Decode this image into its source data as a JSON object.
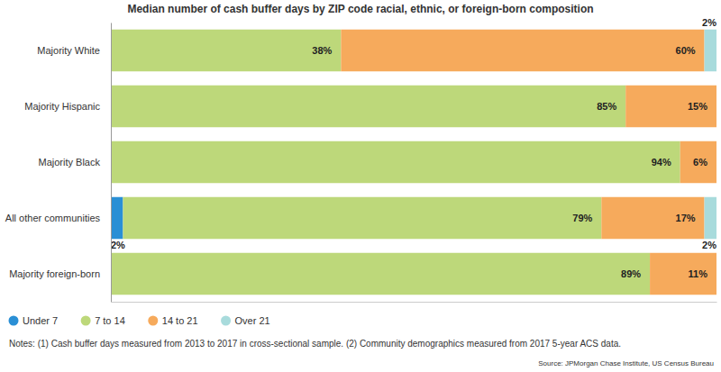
{
  "chart_data": {
    "type": "bar",
    "title": "Median number of cash buffer days by ZIP code racial, ethnic, or foreign-born composition",
    "orientation": "horizontal",
    "stacked": true,
    "data_labels": true,
    "tick_labels": "y",
    "legend": "bottom-left",
    "categories": [
      "Majority White",
      "Majority Hispanic",
      "Majority Black",
      "All other communities",
      "Majority foreign-born"
    ],
    "xlim": [
      0,
      100
    ],
    "series": [
      {
        "name": "Under 7",
        "color": "#2a8fd5",
        "values": [
          0,
          0,
          0,
          2,
          0
        ],
        "value_labels": [
          null,
          null,
          null,
          "2%",
          null
        ]
      },
      {
        "name": "7 to 14",
        "color": "#bdd87a",
        "values": [
          38,
          85,
          94,
          79,
          89
        ],
        "value_labels": [
          "38%",
          "85%",
          "94%",
          "79%",
          "89%"
        ]
      },
      {
        "name": "14 to 21",
        "color": "#f6aa5c",
        "values": [
          60,
          15,
          6,
          17,
          11
        ],
        "value_labels": [
          "60%",
          "15%",
          "6%",
          "17%",
          "11%"
        ]
      },
      {
        "name": "Over 21",
        "color": "#a8dbdc",
        "values": [
          2,
          0,
          0,
          2,
          0
        ],
        "value_labels": [
          "2%",
          null,
          null,
          "2%",
          null
        ]
      }
    ],
    "annotations": [
      "Notes: (1) Cash buffer days measured from 2013 to 2017 in cross-sectional sample. (2) Community demographics measured from 2017 5-year ACS data.",
      "Source: JPMorgan Chase Institute, US Census Bureau"
    ]
  }
}
